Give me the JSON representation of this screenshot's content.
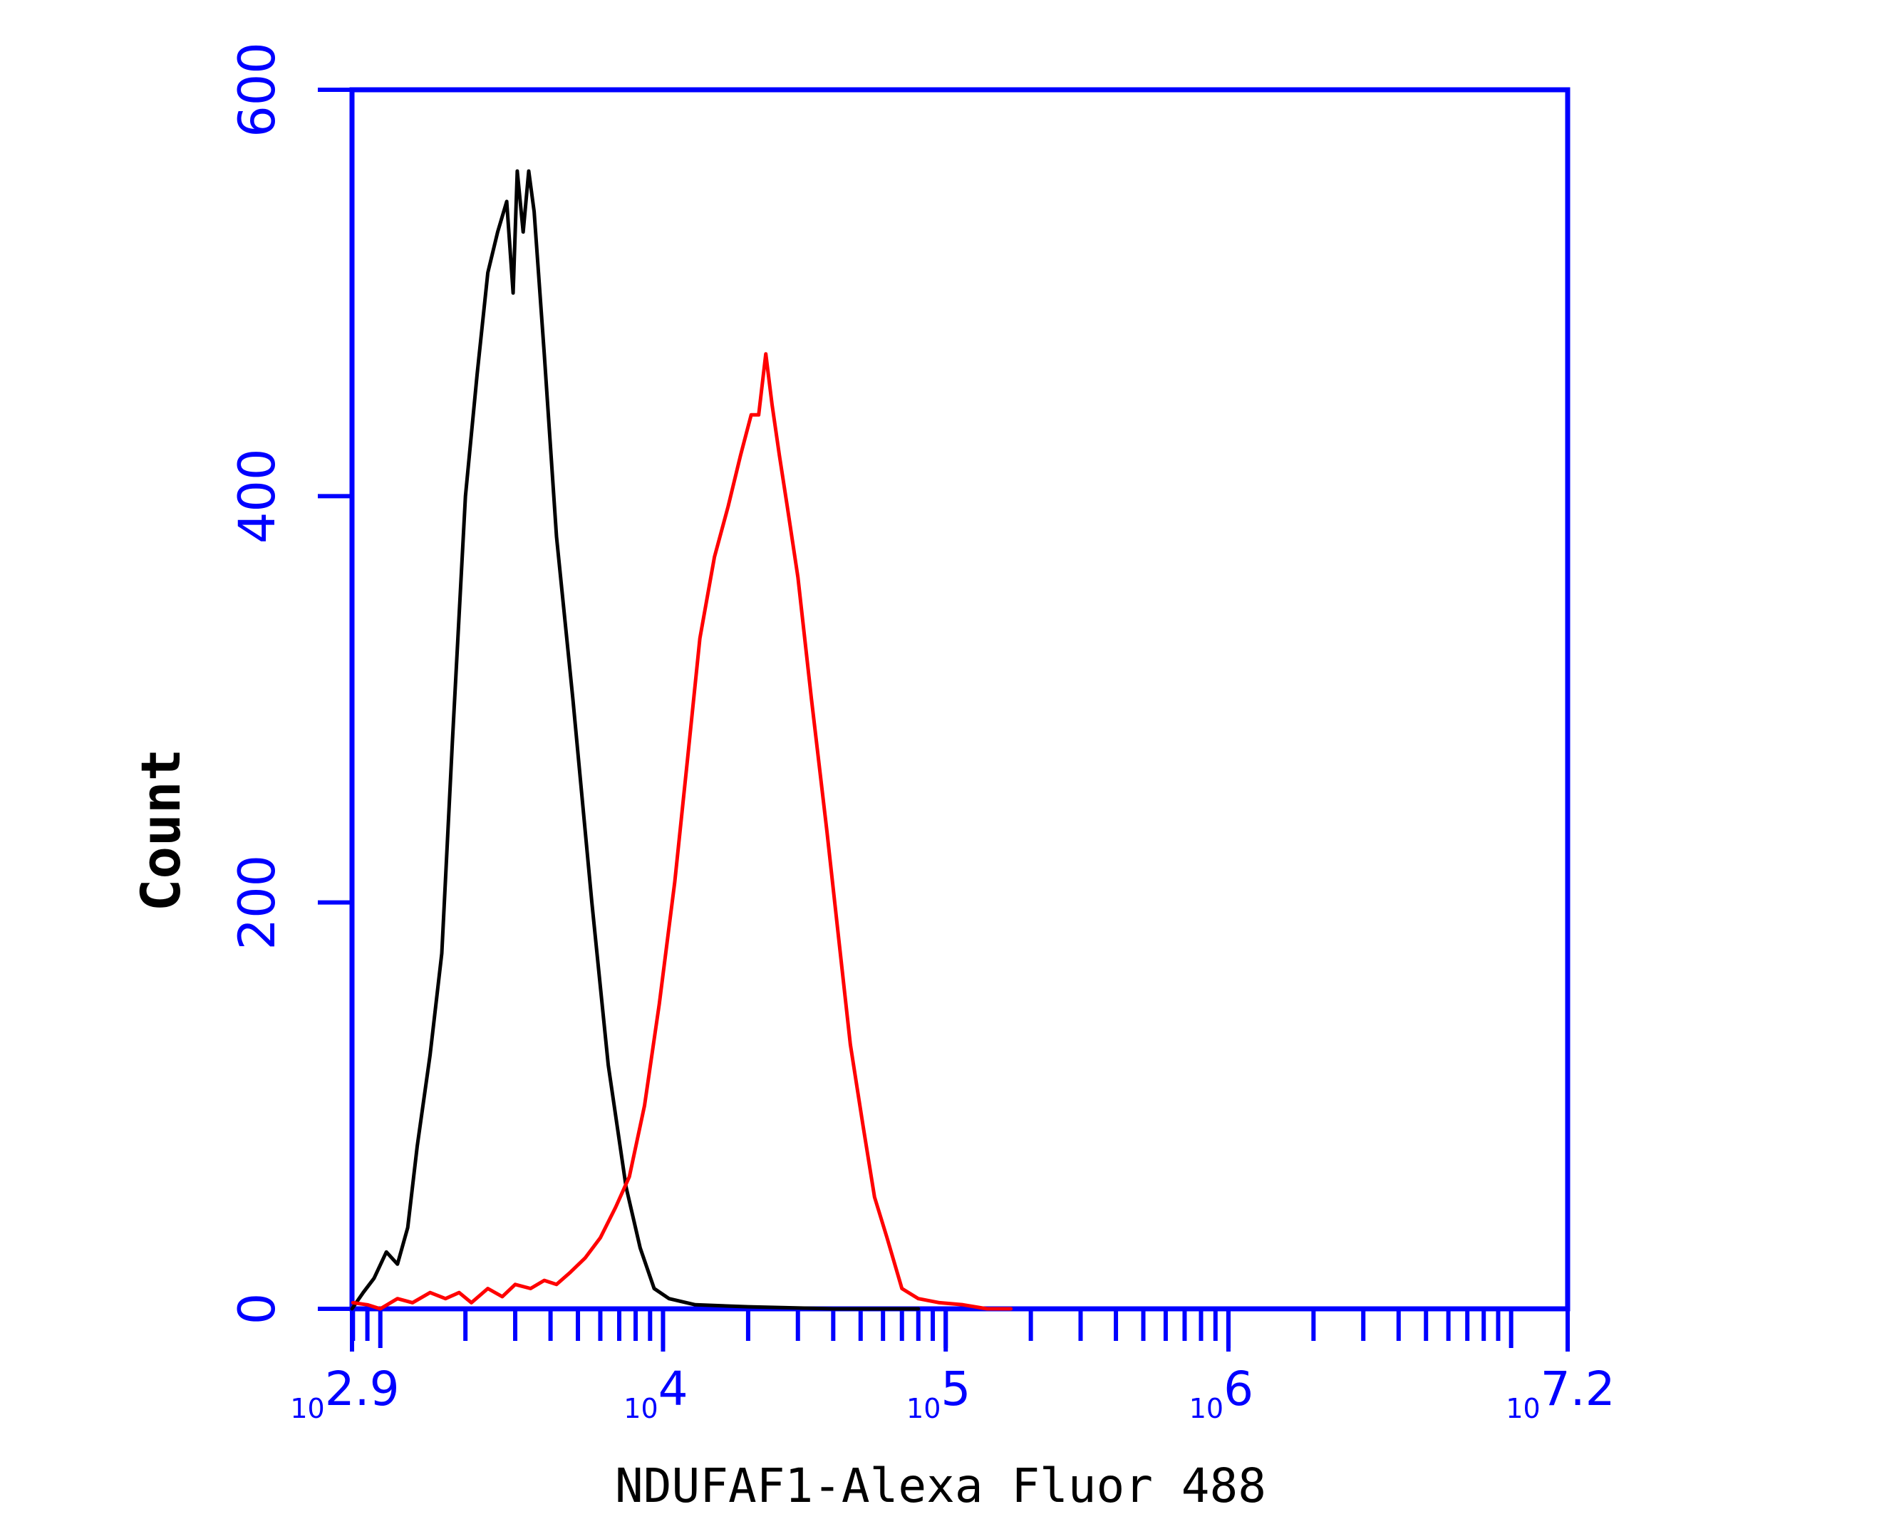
{
  "chart_data": {
    "type": "line",
    "title": "",
    "xlabel": "NDUFAF1-Alexa Fluor 488",
    "ylabel": "Count",
    "x_scale": "log",
    "xlim": [
      794,
      15849000
    ],
    "ylim": [
      0,
      600
    ],
    "axis_color": "#0000ff",
    "grid": false,
    "legend": "none",
    "y_ticks": [
      {
        "value": 0,
        "label": "0"
      },
      {
        "value": 200,
        "label": "200"
      },
      {
        "value": 400,
        "label": "400"
      },
      {
        "value": 600,
        "label": "600"
      }
    ],
    "x_ticks": [
      {
        "value": 794,
        "base": "10",
        "exponent": "2.9"
      },
      {
        "value": 10000,
        "base": "10",
        "exponent": "4"
      },
      {
        "value": 100000,
        "base": "10",
        "exponent": "5"
      },
      {
        "value": 1000000,
        "base": "10",
        "exponent": "6"
      },
      {
        "value": 15849000,
        "base": "10",
        "exponent": "7.2"
      }
    ],
    "series": [
      {
        "color": "#000000",
        "points": [
          [
            794,
            0
          ],
          [
            870,
            8
          ],
          [
            950,
            15
          ],
          [
            1050,
            28
          ],
          [
            1150,
            22
          ],
          [
            1250,
            40
          ],
          [
            1350,
            80
          ],
          [
            1500,
            125
          ],
          [
            1650,
            175
          ],
          [
            1800,
            280
          ],
          [
            2000,
            400
          ],
          [
            2200,
            460
          ],
          [
            2400,
            510
          ],
          [
            2600,
            530
          ],
          [
            2800,
            545
          ],
          [
            2950,
            500
          ],
          [
            3050,
            560
          ],
          [
            3200,
            530
          ],
          [
            3350,
            560
          ],
          [
            3500,
            540
          ],
          [
            3800,
            470
          ],
          [
            4200,
            380
          ],
          [
            4800,
            300
          ],
          [
            5600,
            200
          ],
          [
            6400,
            120
          ],
          [
            7400,
            60
          ],
          [
            8300,
            30
          ],
          [
            9300,
            10
          ],
          [
            10500,
            5
          ],
          [
            13000,
            2
          ],
          [
            20000,
            1
          ],
          [
            40000,
            0
          ],
          [
            80000,
            0
          ]
        ]
      },
      {
        "color": "#ff0000",
        "points": [
          [
            800,
            3
          ],
          [
            900,
            2
          ],
          [
            1000,
            0
          ],
          [
            1150,
            5
          ],
          [
            1300,
            3
          ],
          [
            1500,
            8
          ],
          [
            1700,
            5
          ],
          [
            1900,
            8
          ],
          [
            2100,
            3
          ],
          [
            2400,
            10
          ],
          [
            2700,
            6
          ],
          [
            3000,
            12
          ],
          [
            3400,
            10
          ],
          [
            3800,
            14
          ],
          [
            4200,
            12
          ],
          [
            4700,
            18
          ],
          [
            5300,
            25
          ],
          [
            6000,
            35
          ],
          [
            6800,
            50
          ],
          [
            7600,
            65
          ],
          [
            8600,
            100
          ],
          [
            9700,
            150
          ],
          [
            11000,
            210
          ],
          [
            12200,
            270
          ],
          [
            13500,
            330
          ],
          [
            15200,
            370
          ],
          [
            17000,
            395
          ],
          [
            18800,
            420
          ],
          [
            20500,
            440
          ],
          [
            21800,
            440
          ],
          [
            23100,
            470
          ],
          [
            24300,
            445
          ],
          [
            25800,
            420
          ],
          [
            27500,
            395
          ],
          [
            30000,
            360
          ],
          [
            33500,
            300
          ],
          [
            38000,
            235
          ],
          [
            42000,
            180
          ],
          [
            46000,
            130
          ],
          [
            51000,
            90
          ],
          [
            56000,
            55
          ],
          [
            62000,
            35
          ],
          [
            70000,
            10
          ],
          [
            80000,
            5
          ],
          [
            95000,
            3
          ],
          [
            115000,
            2
          ],
          [
            140000,
            0
          ],
          [
            170000,
            0
          ]
        ]
      }
    ]
  }
}
